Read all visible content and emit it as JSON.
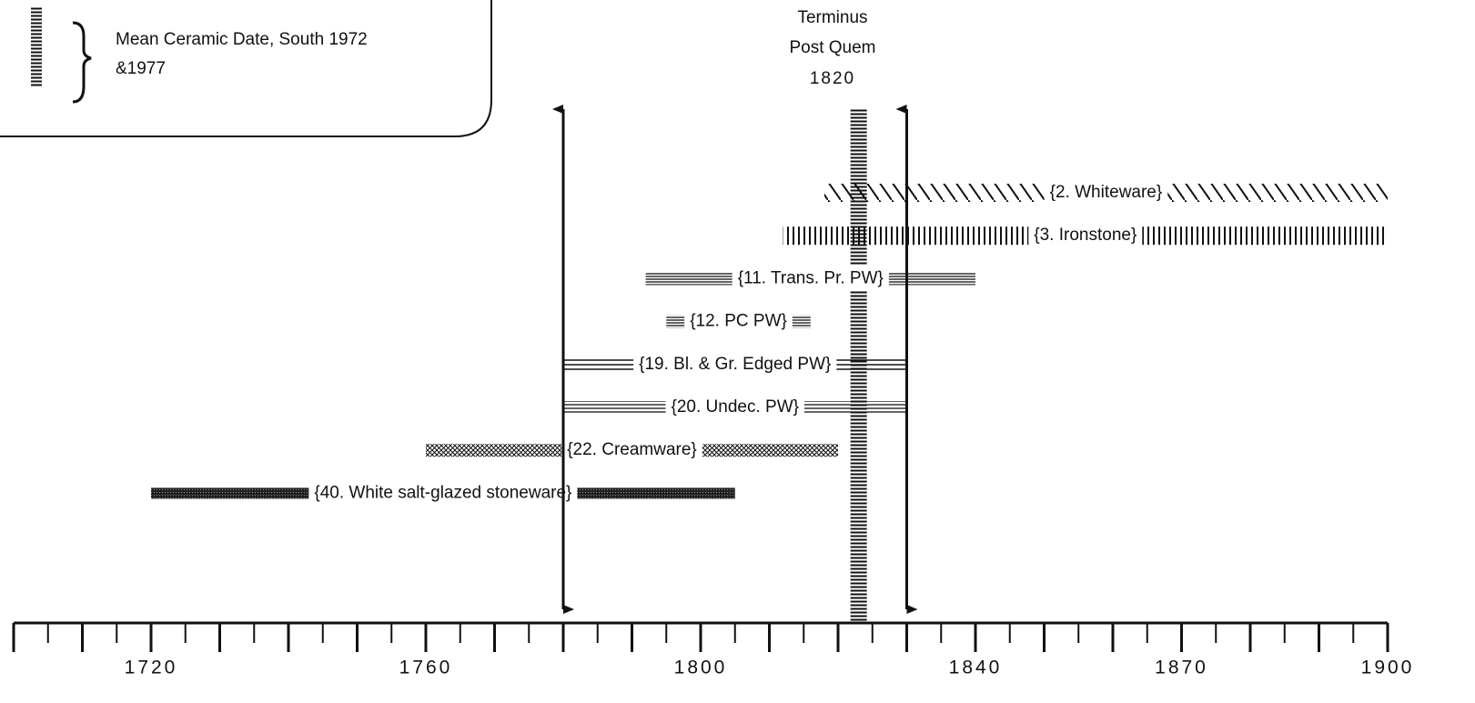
{
  "chart_data": {
    "type": "range",
    "legend": {
      "lines": [
        "Mean Ceramic Date, South 1972",
        "&1977"
      ]
    },
    "tpq": {
      "lines": [
        "Terminus",
        "Post Quem"
      ],
      "year": 1820
    },
    "mean_ceramic_date": 1823,
    "arrows": [
      1780,
      1830
    ],
    "series": [
      {
        "name": "{2. Whiteware}",
        "start": 1818,
        "end": 1900,
        "pattern": "diagonal"
      },
      {
        "name": "{3. Ironstone}",
        "start": 1812,
        "end": 1900,
        "pattern": "vertical"
      },
      {
        "name": "{11. Trans. Pr. PW}",
        "start": 1792,
        "end": 1840,
        "pattern": "horizontal"
      },
      {
        "name": "{12. PC PW}",
        "start": 1795,
        "end": 1816,
        "pattern": "horizontal"
      },
      {
        "name": "{19. Bl. & Gr. Edged PW}",
        "start": 1780,
        "end": 1830,
        "pattern": "lines3"
      },
      {
        "name": "{20. Undec. PW}",
        "start": 1780,
        "end": 1830,
        "pattern": "lines4"
      },
      {
        "name": "{22. Creamware}",
        "start": 1760,
        "end": 1820,
        "pattern": "cross"
      },
      {
        "name": "{40. White salt-glazed stoneware}",
        "start": 1720,
        "end": 1805,
        "pattern": "dark"
      }
    ],
    "xlim": [
      1700,
      1900
    ],
    "xticks": [
      1720,
      1760,
      1800,
      1840,
      1870,
      1900
    ],
    "xminor_ticks": [
      1700,
      1705,
      1710,
      1715,
      1720,
      1725,
      1730,
      1735,
      1740,
      1745,
      1750,
      1755,
      1760,
      1765,
      1770,
      1775,
      1780,
      1785,
      1790,
      1795,
      1800,
      1805,
      1810,
      1815,
      1820,
      1825,
      1830,
      1835,
      1840,
      1845,
      1850,
      1855,
      1860,
      1865,
      1870,
      1875,
      1880,
      1885,
      1890,
      1895,
      1900
    ]
  }
}
